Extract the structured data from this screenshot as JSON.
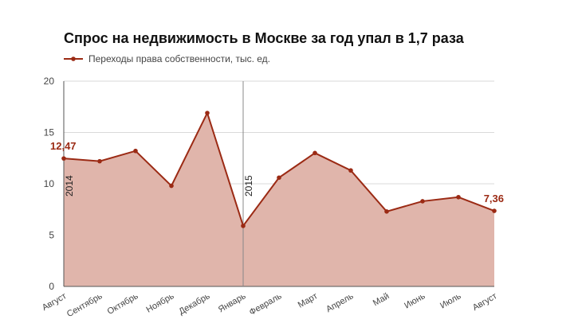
{
  "title": "Спрос на недвижимость в Москве за год упал в 1,7 раза",
  "colors": {
    "line": "#9b2a14",
    "fill": "#e0b5ab",
    "grid": "#d9d9d9",
    "axis": "#555555"
  },
  "chart_data": {
    "type": "area",
    "categories": [
      "Август",
      "Сентябрь",
      "Октябрь",
      "Ноябрь",
      "Декабрь",
      "Январь",
      "Февраль",
      "Март",
      "Апрель",
      "Май",
      "Июнь",
      "Июль",
      "Август"
    ],
    "series": [
      {
        "name": "Переходы права собственности, тыс. ед.",
        "values": [
          12.47,
          12.2,
          13.2,
          9.8,
          16.9,
          5.9,
          10.6,
          13.0,
          11.3,
          7.3,
          8.3,
          8.7,
          7.36
        ]
      }
    ],
    "ylim": [
      0,
      20
    ],
    "yticks": [
      "0",
      "5",
      "10",
      "15",
      "20"
    ],
    "grid": true,
    "legend": "top-left",
    "annotations": [
      {
        "category_index": 0,
        "text": "12,47"
      },
      {
        "category_index": 12,
        "text": "7,36"
      }
    ],
    "year_markers": [
      {
        "category_index": 0,
        "text": "2014"
      },
      {
        "category_index": 5,
        "text": "2015"
      }
    ]
  }
}
